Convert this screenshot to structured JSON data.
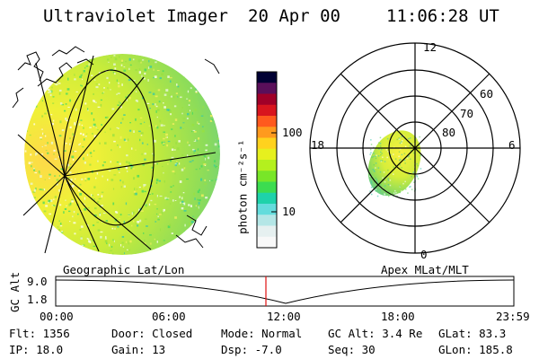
{
  "header": {
    "title": "Ultraviolet Imager",
    "date": "20 Apr 00",
    "time": "11:06:28 UT"
  },
  "colorbar": {
    "unit_label": "photon cm⁻²s⁻¹",
    "ticks": [
      "100",
      "10"
    ],
    "colors": [
      "#000033",
      "#5a0f5a",
      "#a00028",
      "#d8151e",
      "#ff5a1e",
      "#ff9a1e",
      "#ffd21e",
      "#e6f01e",
      "#b4f01e",
      "#78e628",
      "#3cdc50",
      "#1ed2aa",
      "#64dcdc",
      "#b4e6e6",
      "#e6f0f0",
      "#f8f8f8"
    ]
  },
  "geo_panel": {
    "label": "Geographic Lat/Lon"
  },
  "mlt_panel": {
    "label": "Apex MLat/MLT",
    "hour_labels": {
      "top": "12",
      "left": "18",
      "right": "6",
      "bottom": "0"
    },
    "lat_labels": [
      "60",
      "70",
      "80"
    ]
  },
  "timeline": {
    "ylabel": "GC Alt",
    "yticks": [
      "9.0",
      "1.8"
    ],
    "xticks": [
      "00:00",
      "06:00",
      "12:00",
      "18:00",
      "23:59"
    ],
    "marker_color": "#e01010"
  },
  "status": {
    "row1": [
      "Flt: 1356",
      "Door: Closed",
      "Mode: Normal",
      "GC Alt: 3.4 Re",
      "GLat:  83.3"
    ],
    "row2": [
      "IP: 18.0",
      "Gain: 13",
      "Dsp:   -7.0",
      "Seq: 30",
      "GLon: 185.8"
    ]
  }
}
